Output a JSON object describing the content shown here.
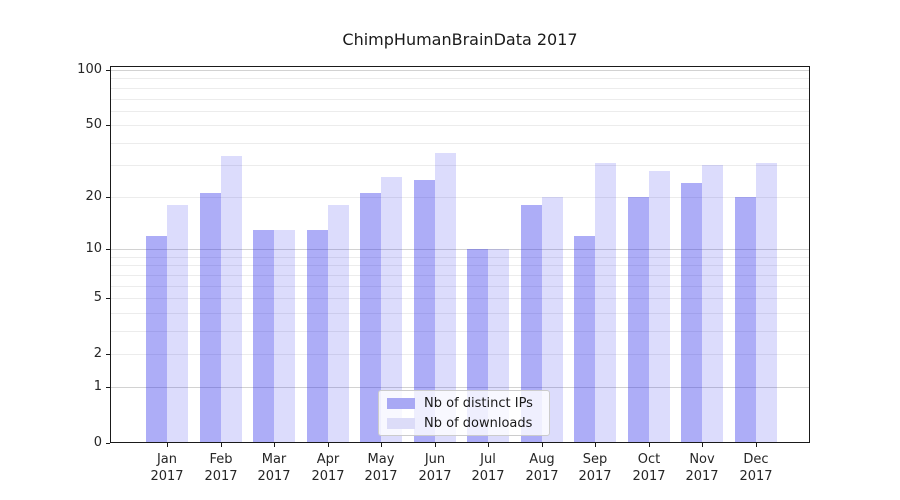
{
  "title": "ChimpHumanBrainData 2017",
  "chart_data": {
    "type": "bar",
    "title": "ChimpHumanBrainData 2017",
    "year": "2017",
    "categories": [
      "Jan",
      "Feb",
      "Mar",
      "Apr",
      "May",
      "Jun",
      "Jul",
      "Aug",
      "Sep",
      "Oct",
      "Nov",
      "Dec"
    ],
    "series": [
      {
        "name": "Nb of distinct IPs",
        "bar_color": "rgba(40,40,235,0.38)",
        "legend_color": "#a8a8f4",
        "values": [
          12,
          21,
          13,
          13,
          21,
          25,
          10,
          18,
          12,
          20,
          24,
          20
        ]
      },
      {
        "name": "Nb of downloads",
        "bar_color": "rgba(40,40,235,0.16)",
        "legend_color": "#dcdcf8",
        "values": [
          18,
          34,
          13,
          18,
          26,
          35,
          10,
          20,
          31,
          28,
          30,
          31
        ]
      }
    ],
    "yscale": "log1p",
    "ylim": [
      0,
      105
    ],
    "yticks": [
      0,
      1,
      2,
      5,
      10,
      20,
      50,
      100
    ],
    "major_gridlines": [
      1,
      10,
      100
    ],
    "minor_gridlines": [
      2,
      3,
      4,
      5,
      6,
      7,
      8,
      9,
      20,
      30,
      40,
      50,
      60,
      70,
      80,
      90
    ],
    "grid": true,
    "legend_position": "lower-center"
  },
  "colors": {
    "major_grid": "#d2d2d2",
    "minor_grid": "#ececec",
    "axis": "#1a1a1a",
    "text": "#262626"
  }
}
